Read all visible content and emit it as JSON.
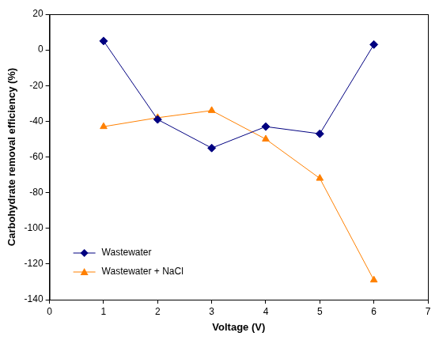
{
  "chart_data": {
    "type": "line",
    "x_label": "Voltage (V)",
    "y_label": "Carbohydrate removal efficiency (%)",
    "x": [
      1,
      2,
      3,
      4,
      5,
      6
    ],
    "series": [
      {
        "name": "Wastewater",
        "color": "#000080",
        "marker": "diamond",
        "values": [
          5,
          -39,
          -55,
          -43,
          -47,
          3
        ]
      },
      {
        "name": "Wastewater + NaCl",
        "color": "#ff8000",
        "marker": "triangle",
        "values": [
          -43,
          -38,
          -34,
          -50,
          -72,
          -129
        ]
      }
    ],
    "xlim": [
      0,
      7
    ],
    "xticks": [
      0,
      1,
      2,
      3,
      4,
      5,
      6,
      7
    ],
    "ylim": [
      -140,
      20
    ],
    "yticks": [
      -140,
      -120,
      -100,
      -80,
      -60,
      -40,
      -20,
      0,
      20
    ],
    "grid": false,
    "legend": "lower left"
  }
}
